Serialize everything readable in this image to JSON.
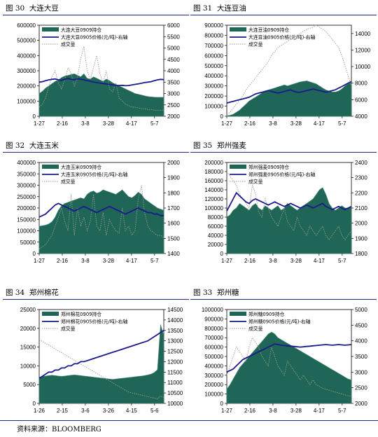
{
  "footer": {
    "source": "资料来源：BLOOMBERG"
  },
  "colors": {
    "oi_fill": "#1f6656",
    "oi_fill_light": "#4f8f7f",
    "price_line": "#1a1a8c",
    "volume_line": "#9a9a9a",
    "rule": "#1f2b8a"
  },
  "chart_data": [
    {
      "figure": "图 30",
      "title": "大连大豆",
      "type": "area",
      "legend": [
        "大连大豆0909持仓",
        "大连大豆0905价格(元/吨)-右轴",
        "成交量"
      ],
      "x_ticks": [
        "1-27",
        "2-16",
        "3-8",
        "3-28",
        "4-17",
        "5-7"
      ],
      "ylim": [
        0,
        600000
      ],
      "y_ticks": [
        0,
        100000,
        200000,
        300000,
        400000,
        500000,
        600000
      ],
      "y2lim": [
        2000,
        6000
      ],
      "y2_ticks": [
        2000,
        2500,
        3000,
        3500,
        4000,
        4500,
        5000,
        5500,
        6000
      ],
      "series": [
        {
          "name": "大连大豆0909持仓",
          "values": [
            150000,
            165000,
            185000,
            200000,
            215000,
            230000,
            240000,
            255000,
            265000,
            270000,
            275000,
            280000,
            270000,
            260000,
            280000,
            250000,
            245000,
            260000,
            250000,
            240000,
            230000,
            245000,
            235000,
            220000,
            210000,
            200000,
            190000,
            180000,
            170000,
            160000,
            150000,
            145000,
            140000,
            135000,
            130000,
            128000,
            126000,
            125000,
            125000,
            125000
          ]
        },
        {
          "name": "大连大豆0905价格(元/吨)-右轴",
          "values": [
            3500,
            3520,
            3560,
            3600,
            3620,
            3640,
            3600,
            3580,
            3620,
            3660,
            3620,
            3600,
            3650,
            3620,
            3600,
            3570,
            3540,
            3500,
            3480,
            3460,
            3440,
            3420,
            3400,
            3380,
            3360,
            3350,
            3360,
            3340,
            3350,
            3380,
            3400,
            3420,
            3450,
            3480,
            3500,
            3520,
            3560,
            3600,
            3620,
            3610
          ]
        },
        {
          "name": "成交量",
          "values": [
            60000,
            80000,
            120000,
            200000,
            260000,
            300000,
            220000,
            180000,
            240000,
            320000,
            280000,
            200000,
            260000,
            380000,
            460000,
            300000,
            240000,
            320000,
            400000,
            280000,
            220000,
            300000,
            180000,
            160000,
            220000,
            120000,
            100000,
            80000,
            70000,
            60000,
            60000,
            55000,
            50000,
            50000,
            45000,
            45000,
            40000,
            40000,
            40000,
            40000
          ]
        }
      ]
    },
    {
      "figure": "图 31",
      "title": "大连豆油",
      "type": "area",
      "legend": [
        "大连豆油0909持仓",
        "大连豆油0905价格(元/吨)-右轴",
        "成交量"
      ],
      "x_ticks": [
        "1-27",
        "2-16",
        "3-8",
        "3-28",
        "4-17",
        "5-7"
      ],
      "ylim": [
        0,
        900000
      ],
      "y_ticks": [
        0,
        100000,
        200000,
        300000,
        400000,
        500000,
        600000,
        700000,
        800000,
        900000
      ],
      "y2lim": [
        4000,
        15000
      ],
      "y2_ticks": [
        4000,
        6000,
        8000,
        10000,
        12000,
        14000
      ],
      "series": [
        {
          "name": "大连豆油0909持仓",
          "values": [
            5000,
            10000,
            20000,
            40000,
            60000,
            90000,
            120000,
            150000,
            170000,
            190000,
            210000,
            230000,
            250000,
            260000,
            270000,
            280000,
            290000,
            300000,
            310000,
            300000,
            310000,
            320000,
            330000,
            340000,
            345000,
            350000,
            340000,
            330000,
            320000,
            300000,
            280000,
            260000,
            250000,
            240000,
            240000,
            250000,
            270000,
            300000,
            320000,
            330000
          ]
        },
        {
          "name": "大连豆油0905价格(元/吨)-右轴",
          "values": [
            5600,
            5700,
            5800,
            5900,
            6000,
            6100,
            6200,
            6300,
            6500,
            6700,
            6800,
            6900,
            7000,
            7100,
            7000,
            6900,
            6800,
            6900,
            7000,
            7100,
            7200,
            7000,
            6900,
            6900,
            7000,
            7100,
            7200,
            7300,
            7200,
            7100,
            7000,
            6900,
            7000,
            7100,
            7200,
            7400,
            7600,
            7800,
            8000,
            8200
          ]
        },
        {
          "name": "成交量",
          "values": [
            20000,
            40000,
            80000,
            120000,
            160000,
            200000,
            260000,
            300000,
            340000,
            380000,
            420000,
            460000,
            500000,
            540000,
            600000,
            640000,
            680000,
            700000,
            720000,
            740000,
            760000,
            780000,
            800000,
            820000,
            840000,
            860000,
            870000,
            880000,
            900000,
            880000,
            860000,
            840000,
            800000,
            760000,
            720000,
            680000,
            600000,
            500000,
            400000,
            300000
          ]
        }
      ]
    },
    {
      "figure": "图 32",
      "title": "大连玉米",
      "type": "area",
      "legend": [
        "大连玉米0909持仓",
        "大连玉米0905价格(元/吨)-右轴",
        "成交量"
      ],
      "x_ticks": [
        "1-27",
        "2-16",
        "3-8",
        "3-28",
        "4-17",
        "5-7"
      ],
      "ylim": [
        0,
        400000
      ],
      "y_ticks": [
        0,
        50000,
        100000,
        150000,
        200000,
        250000,
        300000,
        350000,
        400000
      ],
      "y2lim": [
        1400,
        2000
      ],
      "y2_ticks": [
        1400,
        1500,
        1600,
        1700,
        1800,
        1900,
        2000
      ],
      "series": [
        {
          "name": "大连玉米0909持仓",
          "values": [
            120000,
            122000,
            125000,
            130000,
            140000,
            160000,
            190000,
            210000,
            220000,
            225000,
            230000,
            235000,
            240000,
            245000,
            240000,
            260000,
            270000,
            275000,
            265000,
            270000,
            280000,
            275000,
            270000,
            265000,
            260000,
            270000,
            280000,
            265000,
            250000,
            245000,
            255000,
            270000,
            260000,
            240000,
            230000,
            220000,
            210000,
            200000,
            195000,
            190000
          ]
        },
        {
          "name": "大连玉米0905价格(元/吨)-右轴",
          "values": [
            1640,
            1650,
            1660,
            1680,
            1700,
            1720,
            1730,
            1720,
            1710,
            1700,
            1690,
            1680,
            1690,
            1700,
            1710,
            1700,
            1690,
            1680,
            1670,
            1680,
            1690,
            1700,
            1710,
            1700,
            1690,
            1680,
            1670,
            1660,
            1670,
            1680,
            1690,
            1700,
            1690,
            1680,
            1670,
            1670,
            1660,
            1660,
            1650,
            1650
          ]
        },
        {
          "name": "成交量",
          "values": [
            20000,
            30000,
            40000,
            60000,
            80000,
            120000,
            160000,
            200000,
            140000,
            100000,
            260000,
            80000,
            200000,
            120000,
            160000,
            100000,
            140000,
            260000,
            120000,
            100000,
            180000,
            80000,
            150000,
            120000,
            100000,
            90000,
            200000,
            100000,
            120000,
            80000,
            100000,
            240000,
            300000,
            180000,
            120000,
            100000,
            90000,
            80000,
            80000,
            70000
          ]
        }
      ]
    },
    {
      "figure": "图 35",
      "title": "郑州强麦",
      "type": "area",
      "legend": [
        "郑州强麦0909持仓",
        "郑州强麦0905价格(元/吨)-右轴",
        "成交量"
      ],
      "x_ticks": [
        "1-27",
        "2-16",
        "3-8",
        "3-28",
        "4-17",
        "5-7"
      ],
      "ylim": [
        0,
        200000
      ],
      "y_ticks": [
        0,
        20000,
        40000,
        60000,
        80000,
        100000,
        120000,
        140000,
        160000,
        180000,
        200000
      ],
      "y2lim": [
        1800,
        2400
      ],
      "y2_ticks": [
        1800,
        1900,
        2000,
        2100,
        2200,
        2300,
        2400
      ],
      "series": [
        {
          "name": "郑州强麦0909持仓",
          "values": [
            80000,
            85000,
            95000,
            100000,
            110000,
            105000,
            100000,
            95000,
            105000,
            110000,
            100000,
            95000,
            105000,
            100000,
            95000,
            100000,
            105000,
            95000,
            100000,
            110000,
            105000,
            100000,
            95000,
            100000,
            105000,
            110000,
            115000,
            120000,
            130000,
            140000,
            145000,
            130000,
            110000,
            100000,
            95000,
            100000,
            105000,
            100000,
            100000,
            105000
          ]
        },
        {
          "name": "郑州强麦0905价格(元/吨)-右轴",
          "values": [
            2080,
            2120,
            2160,
            2200,
            2180,
            2160,
            2140,
            2130,
            2150,
            2160,
            2150,
            2140,
            2130,
            2120,
            2130,
            2140,
            2130,
            2120,
            2110,
            2120,
            2130,
            2120,
            2110,
            2100,
            2110,
            2120,
            2110,
            2100,
            2110,
            2120,
            2130,
            2110,
            2100,
            2090,
            2100,
            2110,
            2100,
            2090,
            2100,
            2110
          ]
        },
        {
          "name": "成交量",
          "values": [
            180000,
            170000,
            160000,
            150000,
            130000,
            120000,
            110000,
            100000,
            150000,
            130000,
            90000,
            80000,
            120000,
            100000,
            80000,
            70000,
            60000,
            80000,
            100000,
            70000,
            60000,
            50000,
            80000,
            60000,
            50000,
            40000,
            60000,
            50000,
            40000,
            50000,
            60000,
            40000,
            30000,
            40000,
            50000,
            60000,
            40000,
            30000,
            40000,
            50000
          ]
        }
      ]
    },
    {
      "figure": "图 34",
      "title": "郑州棉花",
      "type": "area",
      "legend": [
        "郑州棉花0909持仓",
        "郑州棉花0905价格(元/吨)-右轴",
        "成交量"
      ],
      "x_ticks": [
        "1-26",
        "2-15",
        "3-6",
        "3-26",
        "4-15",
        "5-6"
      ],
      "ylim": [
        0,
        25000
      ],
      "y_ticks": [
        0,
        5000,
        10000,
        15000,
        20000,
        25000
      ],
      "y2lim": [
        10000,
        14500
      ],
      "y2_ticks": [
        10000,
        10500,
        11000,
        11500,
        12000,
        12500,
        13000,
        13500,
        14000,
        14500
      ],
      "series": [
        {
          "name": "郑州棉花0909持仓",
          "values": [
            7000,
            7200,
            7300,
            7400,
            7500,
            7400,
            7300,
            7200,
            7300,
            7400,
            7500,
            7600,
            7500,
            7400,
            7300,
            7200,
            7100,
            7000,
            6900,
            6800,
            6700,
            6600,
            6500,
            6400,
            6500,
            6600,
            6700,
            6800,
            6900,
            7000,
            7100,
            7200,
            7300,
            7400,
            7600,
            7800,
            8200,
            9000,
            21000,
            18000
          ]
        },
        {
          "name": "郑州棉花0905价格(元/吨)-右轴",
          "values": [
            11200,
            11300,
            11400,
            11500,
            11500,
            11600,
            11600,
            11700,
            11700,
            11800,
            11800,
            11900,
            11900,
            12000,
            12000,
            12050,
            12100,
            12150,
            12200,
            12250,
            12300,
            12350,
            12400,
            12450,
            12500,
            12550,
            12600,
            12650,
            12700,
            12750,
            12800,
            12850,
            12900,
            12950,
            13000,
            13100,
            13200,
            13300,
            13400,
            13500
          ]
        },
        {
          "name": "成交量",
          "values": [
            17000,
            16500,
            16000,
            15500,
            15000,
            14500,
            14000,
            13500,
            13000,
            12500,
            12000,
            11500,
            11000,
            10500,
            10000,
            9500,
            9000,
            8500,
            8000,
            7500,
            7000,
            6500,
            6000,
            5500,
            5000,
            4500,
            4000,
            3500,
            3000,
            2800,
            2600,
            2400,
            2200,
            2000,
            1800,
            1600,
            1400,
            1200,
            2000,
            1500
          ]
        }
      ]
    },
    {
      "figure": "图 33",
      "title": "郑州糖",
      "type": "area",
      "legend": [
        "郑州糖0909持仓",
        "郑州糖0905价格(元/吨)-右轴",
        "成交量"
      ],
      "x_ticks": [
        "1-27",
        "2-16",
        "3-8",
        "3-28",
        "4-17",
        "5-7"
      ],
      "ylim": [
        0,
        1000000
      ],
      "y_ticks": [
        0,
        100000,
        200000,
        300000,
        400000,
        500000,
        600000,
        700000,
        800000,
        900000,
        1000000
      ],
      "y2lim": [
        2000,
        5000
      ],
      "y2_ticks": [
        2000,
        2500,
        3000,
        3500,
        4000,
        4500,
        5000
      ],
      "series": [
        {
          "name": "郑州糖0909持仓",
          "values": [
            150000,
            200000,
            260000,
            320000,
            380000,
            420000,
            460000,
            500000,
            540000,
            580000,
            620000,
            660000,
            700000,
            740000,
            760000,
            740000,
            700000,
            680000,
            660000,
            640000,
            620000,
            600000,
            580000,
            560000,
            540000,
            520000,
            500000,
            480000,
            460000,
            440000,
            420000,
            400000,
            380000,
            360000,
            340000,
            320000,
            300000,
            280000,
            260000,
            250000
          ]
        },
        {
          "name": "郑州糖0905价格(元/吨)-右轴",
          "values": [
            3000,
            3050,
            3100,
            3200,
            3300,
            3400,
            3450,
            3500,
            3550,
            3600,
            3650,
            3700,
            3750,
            3800,
            3850,
            3900,
            3880,
            3860,
            3850,
            3840,
            3830,
            3820,
            3810,
            3800,
            3810,
            3820,
            3830,
            3840,
            3850,
            3860,
            3870,
            3880,
            3870,
            3860,
            3870,
            3880,
            3870,
            3860,
            3870,
            3880
          ]
        },
        {
          "name": "成交量",
          "values": [
            300000,
            400000,
            500000,
            600000,
            550000,
            500000,
            450000,
            600000,
            700000,
            650000,
            600000,
            500000,
            450000,
            400000,
            600000,
            500000,
            400000,
            350000,
            300000,
            450000,
            400000,
            350000,
            300000,
            250000,
            300000,
            250000,
            200000,
            250000,
            200000,
            180000,
            160000,
            150000,
            140000,
            130000,
            120000,
            110000,
            100000,
            90000,
            80000,
            80000
          ]
        }
      ]
    }
  ]
}
